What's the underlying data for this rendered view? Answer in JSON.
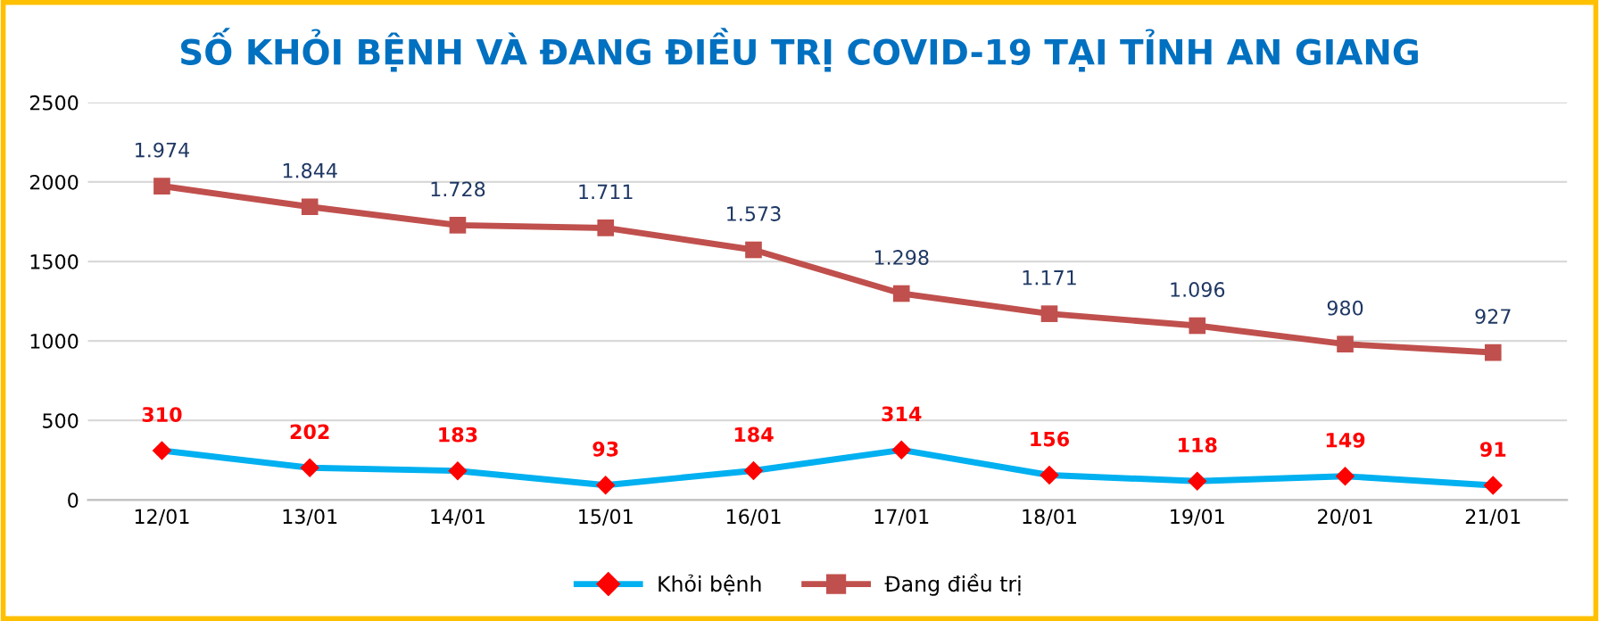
{
  "chart_data": {
    "type": "line",
    "title": "SỐ KHỎI BỆNH VÀ ĐANG ĐIỀU TRỊ COVID-19 TẠI TỈNH AN GIANG",
    "categories": [
      "12/01",
      "13/01",
      "14/01",
      "15/01",
      "16/01",
      "17/01",
      "18/01",
      "19/01",
      "20/01",
      "21/01"
    ],
    "series": [
      {
        "name": "Khỏi bệnh",
        "color": "#00b0f0",
        "colors": [
          "#ff0000",
          "#ff0000",
          "#ff0000",
          "#ff0000",
          "#ff0000",
          "#ff0000",
          "#ff0000",
          "#ff0000",
          "#ff0000",
          "#ff0000"
        ],
        "marker": "diamond",
        "values": [
          310,
          202,
          183,
          93,
          184,
          314,
          156,
          118,
          149,
          91
        ],
        "value_labels": [
          "310",
          "202",
          "183",
          "93",
          "184",
          "314",
          "156",
          "118",
          "149",
          "91"
        ]
      },
      {
        "name": "Đang điều trị",
        "color": "#c0504d",
        "marker": "square",
        "values": [
          1974,
          1844,
          1728,
          1711,
          1573,
          1298,
          1171,
          1096,
          980,
          927
        ],
        "value_labels": [
          "1.974",
          "1.844",
          "1.728",
          "1.711",
          "1.573",
          "1.298",
          "1.171",
          "1.096",
          "980",
          "927"
        ]
      }
    ],
    "ylim": [
      0,
      2500
    ],
    "yticks": [
      0,
      500,
      1000,
      1500,
      2000,
      2500
    ],
    "grid": "y",
    "legend": "bottom"
  }
}
